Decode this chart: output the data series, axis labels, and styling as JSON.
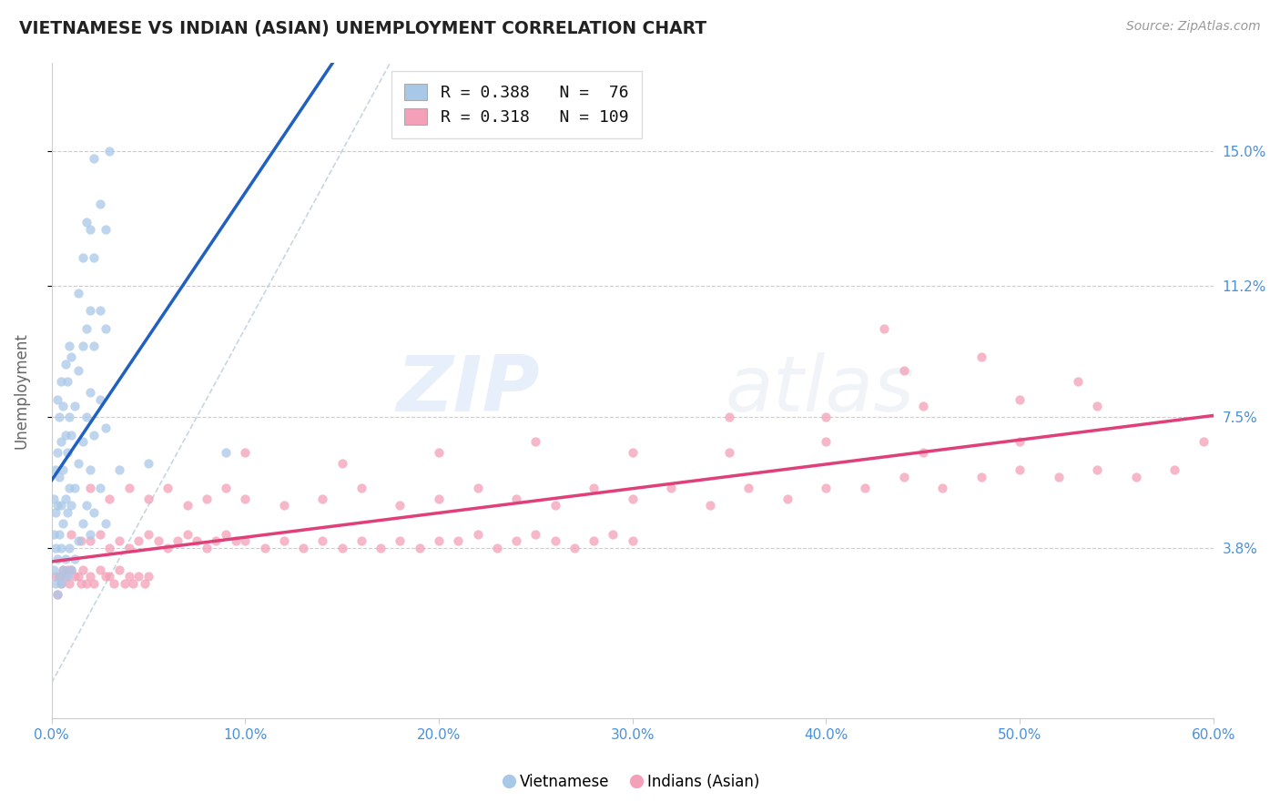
{
  "title": "VIETNAMESE VS INDIAN (ASIAN) UNEMPLOYMENT CORRELATION CHART",
  "source": "Source: ZipAtlas.com",
  "ylabel": "Unemployment",
  "xlim": [
    0.0,
    0.6
  ],
  "ylim": [
    -0.01,
    0.175
  ],
  "yticks": [
    0.038,
    0.075,
    0.112,
    0.15
  ],
  "ytick_labels": [
    "3.8%",
    "7.5%",
    "11.2%",
    "15.0%"
  ],
  "xticks": [
    0.0,
    0.1,
    0.2,
    0.3,
    0.4,
    0.5,
    0.6
  ],
  "xtick_labels": [
    "0.0%",
    "10.0%",
    "20.0%",
    "30.0%",
    "40.0%",
    "50.0%",
    "60.0%"
  ],
  "blue_color": "#a8c8e8",
  "pink_color": "#f4a0b8",
  "blue_line_color": "#2060c0",
  "pink_line_color": "#e0407a",
  "diagonal_color": "#b8ccdd",
  "watermark_color": "#ccddeebb",
  "background_color": "#ffffff",
  "grid_color": "#cccccc",
  "tick_label_color": "#4a90d9",
  "title_color": "#222222",
  "blue_scatter": [
    [
      0.001,
      0.032
    ],
    [
      0.001,
      0.042
    ],
    [
      0.001,
      0.052
    ],
    [
      0.002,
      0.028
    ],
    [
      0.002,
      0.038
    ],
    [
      0.002,
      0.048
    ],
    [
      0.002,
      0.06
    ],
    [
      0.003,
      0.025
    ],
    [
      0.003,
      0.035
    ],
    [
      0.003,
      0.05
    ],
    [
      0.003,
      0.065
    ],
    [
      0.003,
      0.08
    ],
    [
      0.004,
      0.03
    ],
    [
      0.004,
      0.042
    ],
    [
      0.004,
      0.058
    ],
    [
      0.004,
      0.075
    ],
    [
      0.005,
      0.028
    ],
    [
      0.005,
      0.038
    ],
    [
      0.005,
      0.05
    ],
    [
      0.005,
      0.068
    ],
    [
      0.005,
      0.085
    ],
    [
      0.006,
      0.032
    ],
    [
      0.006,
      0.045
    ],
    [
      0.006,
      0.06
    ],
    [
      0.006,
      0.078
    ],
    [
      0.007,
      0.035
    ],
    [
      0.007,
      0.052
    ],
    [
      0.007,
      0.07
    ],
    [
      0.007,
      0.09
    ],
    [
      0.008,
      0.03
    ],
    [
      0.008,
      0.048
    ],
    [
      0.008,
      0.065
    ],
    [
      0.008,
      0.085
    ],
    [
      0.009,
      0.038
    ],
    [
      0.009,
      0.055
    ],
    [
      0.009,
      0.075
    ],
    [
      0.009,
      0.095
    ],
    [
      0.01,
      0.032
    ],
    [
      0.01,
      0.05
    ],
    [
      0.01,
      0.07
    ],
    [
      0.01,
      0.092
    ],
    [
      0.012,
      0.035
    ],
    [
      0.012,
      0.055
    ],
    [
      0.012,
      0.078
    ],
    [
      0.014,
      0.04
    ],
    [
      0.014,
      0.062
    ],
    [
      0.014,
      0.088
    ],
    [
      0.014,
      0.11
    ],
    [
      0.016,
      0.045
    ],
    [
      0.016,
      0.068
    ],
    [
      0.016,
      0.095
    ],
    [
      0.016,
      0.12
    ],
    [
      0.018,
      0.05
    ],
    [
      0.018,
      0.075
    ],
    [
      0.018,
      0.1
    ],
    [
      0.018,
      0.13
    ],
    [
      0.02,
      0.042
    ],
    [
      0.02,
      0.06
    ],
    [
      0.02,
      0.082
    ],
    [
      0.02,
      0.105
    ],
    [
      0.02,
      0.128
    ],
    [
      0.022,
      0.048
    ],
    [
      0.022,
      0.07
    ],
    [
      0.022,
      0.095
    ],
    [
      0.022,
      0.12
    ],
    [
      0.022,
      0.148
    ],
    [
      0.025,
      0.055
    ],
    [
      0.025,
      0.08
    ],
    [
      0.025,
      0.105
    ],
    [
      0.025,
      0.135
    ],
    [
      0.028,
      0.045
    ],
    [
      0.028,
      0.072
    ],
    [
      0.028,
      0.1
    ],
    [
      0.028,
      0.128
    ],
    [
      0.03,
      0.15
    ],
    [
      0.035,
      0.06
    ],
    [
      0.05,
      0.062
    ],
    [
      0.09,
      0.065
    ]
  ],
  "pink_scatter": [
    [
      0.002,
      0.03
    ],
    [
      0.003,
      0.025
    ],
    [
      0.004,
      0.03
    ],
    [
      0.005,
      0.028
    ],
    [
      0.006,
      0.032
    ],
    [
      0.007,
      0.03
    ],
    [
      0.008,
      0.032
    ],
    [
      0.009,
      0.028
    ],
    [
      0.01,
      0.032
    ],
    [
      0.012,
      0.03
    ],
    [
      0.014,
      0.03
    ],
    [
      0.015,
      0.028
    ],
    [
      0.016,
      0.032
    ],
    [
      0.018,
      0.028
    ],
    [
      0.02,
      0.03
    ],
    [
      0.022,
      0.028
    ],
    [
      0.025,
      0.032
    ],
    [
      0.028,
      0.03
    ],
    [
      0.03,
      0.03
    ],
    [
      0.032,
      0.028
    ],
    [
      0.035,
      0.032
    ],
    [
      0.038,
      0.028
    ],
    [
      0.04,
      0.03
    ],
    [
      0.042,
      0.028
    ],
    [
      0.045,
      0.03
    ],
    [
      0.048,
      0.028
    ],
    [
      0.05,
      0.03
    ],
    [
      0.01,
      0.042
    ],
    [
      0.015,
      0.04
    ],
    [
      0.02,
      0.04
    ],
    [
      0.025,
      0.042
    ],
    [
      0.03,
      0.038
    ],
    [
      0.035,
      0.04
    ],
    [
      0.04,
      0.038
    ],
    [
      0.045,
      0.04
    ],
    [
      0.05,
      0.042
    ],
    [
      0.055,
      0.04
    ],
    [
      0.06,
      0.038
    ],
    [
      0.065,
      0.04
    ],
    [
      0.07,
      0.042
    ],
    [
      0.075,
      0.04
    ],
    [
      0.08,
      0.038
    ],
    [
      0.085,
      0.04
    ],
    [
      0.09,
      0.042
    ],
    [
      0.095,
      0.04
    ],
    [
      0.1,
      0.04
    ],
    [
      0.11,
      0.038
    ],
    [
      0.12,
      0.04
    ],
    [
      0.13,
      0.038
    ],
    [
      0.14,
      0.04
    ],
    [
      0.15,
      0.038
    ],
    [
      0.16,
      0.04
    ],
    [
      0.17,
      0.038
    ],
    [
      0.18,
      0.04
    ],
    [
      0.19,
      0.038
    ],
    [
      0.2,
      0.04
    ],
    [
      0.21,
      0.04
    ],
    [
      0.22,
      0.042
    ],
    [
      0.23,
      0.038
    ],
    [
      0.24,
      0.04
    ],
    [
      0.25,
      0.042
    ],
    [
      0.26,
      0.04
    ],
    [
      0.27,
      0.038
    ],
    [
      0.28,
      0.04
    ],
    [
      0.29,
      0.042
    ],
    [
      0.3,
      0.04
    ],
    [
      0.02,
      0.055
    ],
    [
      0.03,
      0.052
    ],
    [
      0.04,
      0.055
    ],
    [
      0.05,
      0.052
    ],
    [
      0.06,
      0.055
    ],
    [
      0.07,
      0.05
    ],
    [
      0.08,
      0.052
    ],
    [
      0.09,
      0.055
    ],
    [
      0.1,
      0.052
    ],
    [
      0.12,
      0.05
    ],
    [
      0.14,
      0.052
    ],
    [
      0.16,
      0.055
    ],
    [
      0.18,
      0.05
    ],
    [
      0.2,
      0.052
    ],
    [
      0.22,
      0.055
    ],
    [
      0.24,
      0.052
    ],
    [
      0.26,
      0.05
    ],
    [
      0.28,
      0.055
    ],
    [
      0.3,
      0.052
    ],
    [
      0.32,
      0.055
    ],
    [
      0.34,
      0.05
    ],
    [
      0.36,
      0.055
    ],
    [
      0.38,
      0.052
    ],
    [
      0.4,
      0.055
    ],
    [
      0.42,
      0.055
    ],
    [
      0.44,
      0.058
    ],
    [
      0.46,
      0.055
    ],
    [
      0.48,
      0.058
    ],
    [
      0.5,
      0.06
    ],
    [
      0.52,
      0.058
    ],
    [
      0.54,
      0.06
    ],
    [
      0.56,
      0.058
    ],
    [
      0.58,
      0.06
    ],
    [
      0.595,
      0.068
    ],
    [
      0.1,
      0.065
    ],
    [
      0.15,
      0.062
    ],
    [
      0.2,
      0.065
    ],
    [
      0.25,
      0.068
    ],
    [
      0.3,
      0.065
    ],
    [
      0.35,
      0.065
    ],
    [
      0.4,
      0.068
    ],
    [
      0.45,
      0.065
    ],
    [
      0.5,
      0.068
    ],
    [
      0.35,
      0.075
    ],
    [
      0.4,
      0.075
    ],
    [
      0.45,
      0.078
    ],
    [
      0.5,
      0.08
    ],
    [
      0.54,
      0.078
    ],
    [
      0.44,
      0.088
    ],
    [
      0.48,
      0.092
    ],
    [
      0.43,
      0.1
    ],
    [
      0.53,
      0.085
    ]
  ]
}
